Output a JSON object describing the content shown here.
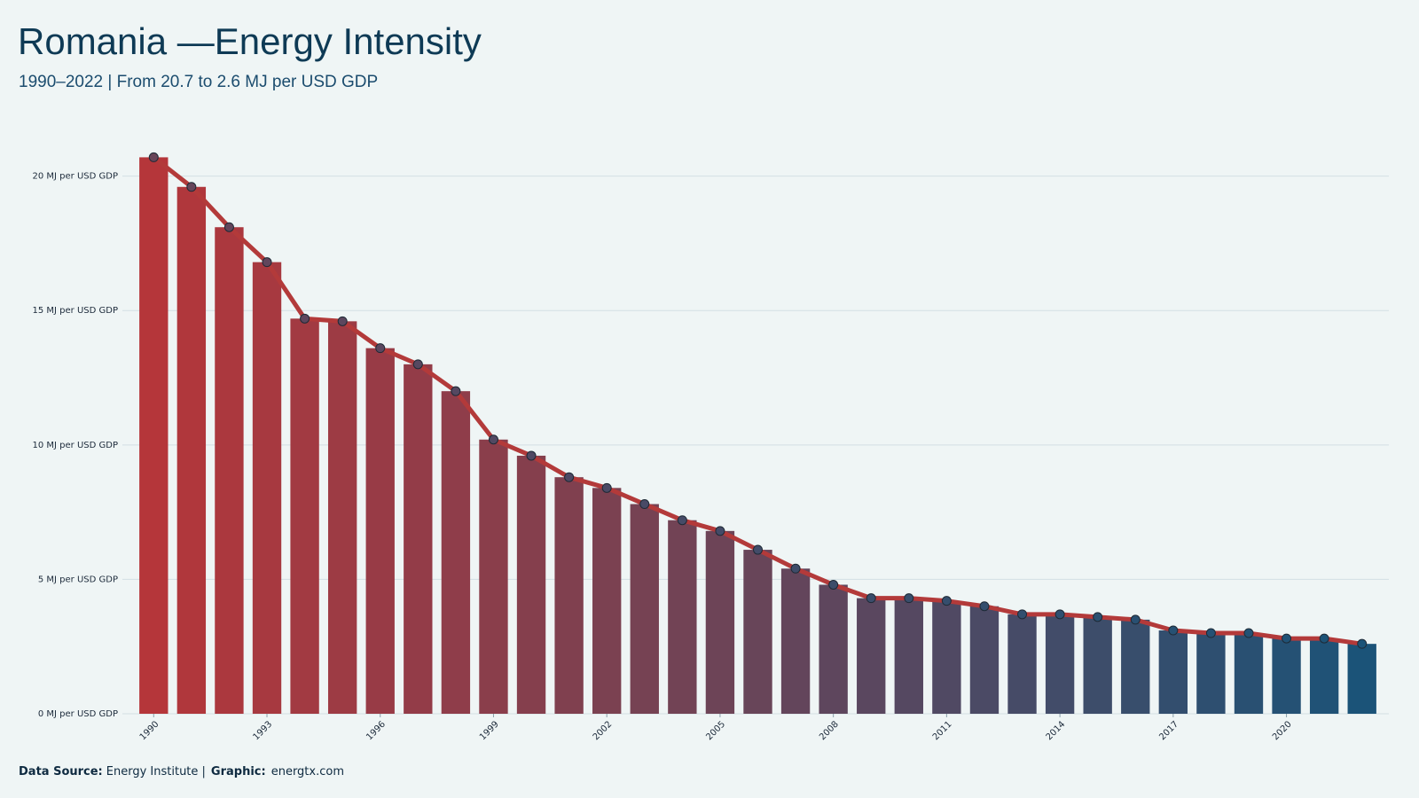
{
  "chart_data": {
    "type": "bar",
    "title": "Romania —Energy Intensity",
    "subtitle": "1990–2022 | From 20.7 to 2.6 MJ per USD GDP",
    "x": [
      1990,
      1991,
      1992,
      1993,
      1994,
      1995,
      1996,
      1997,
      1998,
      1999,
      2000,
      2001,
      2002,
      2003,
      2004,
      2005,
      2006,
      2007,
      2008,
      2009,
      2010,
      2011,
      2012,
      2013,
      2014,
      2015,
      2016,
      2017,
      2018,
      2019,
      2020,
      2021,
      2022
    ],
    "values": [
      20.7,
      19.6,
      18.1,
      16.8,
      14.7,
      14.6,
      13.6,
      13.0,
      12.0,
      10.2,
      9.6,
      8.8,
      8.4,
      7.8,
      7.2,
      6.8,
      6.1,
      5.4,
      4.8,
      4.3,
      4.3,
      4.2,
      4.0,
      3.7,
      3.7,
      3.6,
      3.5,
      3.1,
      3.0,
      3.0,
      2.8,
      2.8,
      2.6
    ],
    "xlim": [
      1989.5,
      2022.5
    ],
    "xticks": [
      1990,
      1993,
      1996,
      1999,
      2002,
      2005,
      2008,
      2011,
      2014,
      2017,
      2020
    ],
    "ylim": [
      0,
      22
    ],
    "yticks": [
      {
        "value": 0,
        "label": "0 MJ per USD GDP"
      },
      {
        "value": 5,
        "label": "5 MJ per USD GDP"
      },
      {
        "value": 10,
        "label": "10 MJ per USD GDP"
      },
      {
        "value": 15,
        "label": "15 MJ per USD GDP"
      },
      {
        "value": 20,
        "label": "20 MJ per USD GDP"
      }
    ],
    "grid": true,
    "color_start": "#b5363a",
    "color_end": "#1b5378",
    "line_color": "#b33a3a",
    "line": true,
    "markers": true,
    "source_label": "Data Source:",
    "source": "Energy Institute |",
    "graphic_label": "Graphic:",
    "graphic": "energtx.com"
  }
}
